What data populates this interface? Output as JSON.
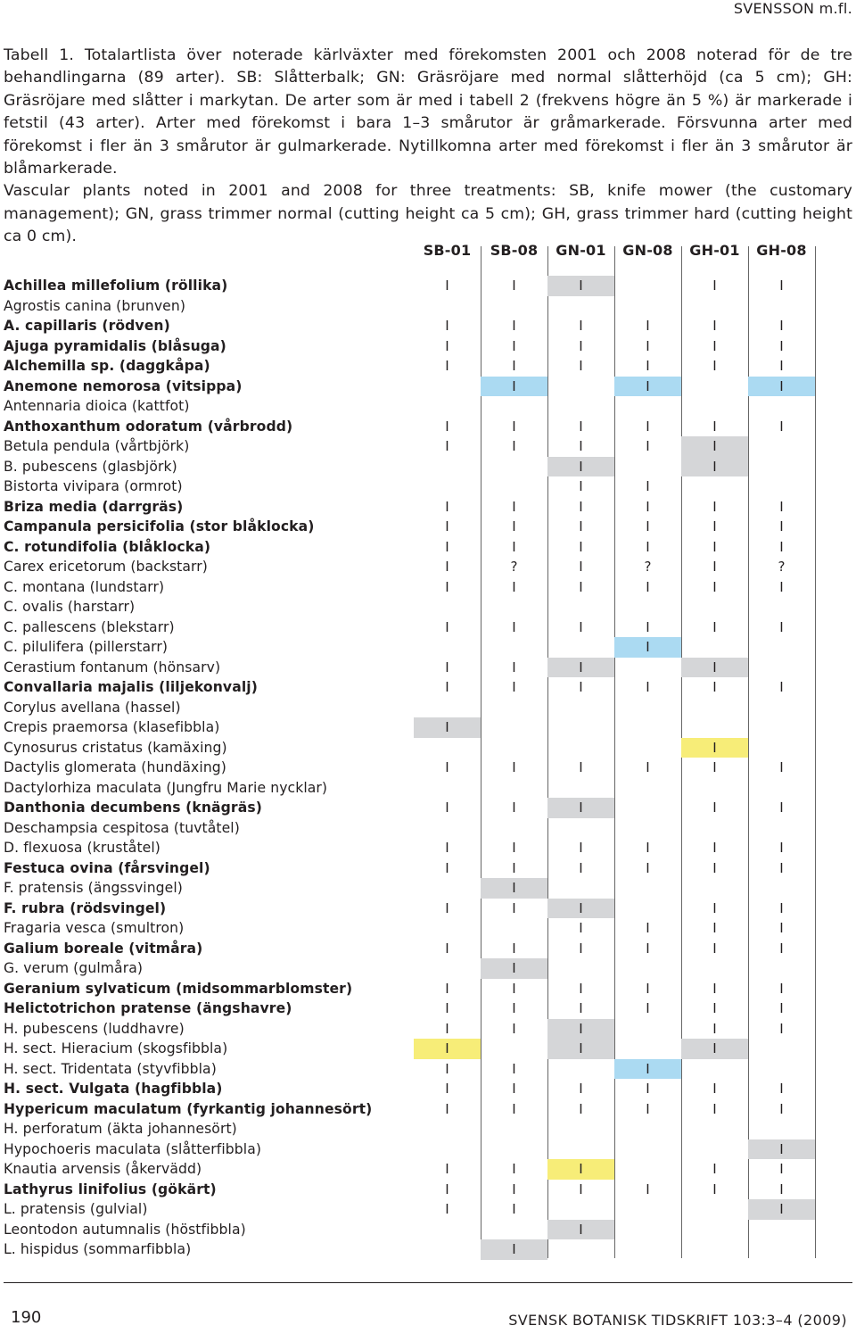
{
  "running_head": "SVENSSON m.fl.",
  "caption": {
    "swedish": "Tabell 1. Totalartlista över noterade kärlväxter med förekomsten 2001 och 2008 noterad för de tre behandlingarna (89 arter). SB: Slåtterbalk; GN: Gräsröjare med normal slåtterhöjd (ca 5 cm); GH: Gräsröjare med slåtter i markytan. De arter som är med i tabell 2 (frekvens högre än 5 %) är markerade i fetstil (43 arter). Arter med förekomst i bara 1–3 smårutor är gråmarkerade. Försvunna arter med förekomst i fler än 3 smårutor är gulmarkerade. Nytillkomna arter med förekomst i fler än 3 smårutor är blåmarkerade.",
    "english": "Vascular plants noted in 2001 and 2008 for three treatments: SB, knife mower (the customary management); GN, grass trimmer normal (cutting height ca 5 cm); GH, grass trimmer hard (cutting height ca 0 cm)."
  },
  "columns": [
    "SB-01",
    "SB-08",
    "GN-01",
    "GN-08",
    "GH-01",
    "GH-08"
  ],
  "highlight_colors": {
    "gray": "#d5d6d8",
    "blue": "#abdaf2",
    "yellow": "#f7ed78"
  },
  "rows": [
    {
      "species": "Achillea millefolium (röllika)",
      "bold": true,
      "cells": [
        {
          "v": "I"
        },
        {
          "v": "I"
        },
        {
          "v": "I",
          "h": "gray"
        },
        {
          "v": ""
        },
        {
          "v": "I"
        },
        {
          "v": "I"
        }
      ]
    },
    {
      "species": "Agrostis canina (brunven)",
      "bold": false,
      "cells": [
        {
          "v": ""
        },
        {
          "v": ""
        },
        {
          "v": ""
        },
        {
          "v": ""
        },
        {
          "v": ""
        },
        {
          "v": ""
        }
      ]
    },
    {
      "species": "A. capillaris (rödven)",
      "bold": true,
      "cells": [
        {
          "v": "I"
        },
        {
          "v": "I"
        },
        {
          "v": "I"
        },
        {
          "v": "I"
        },
        {
          "v": "I"
        },
        {
          "v": "I"
        }
      ]
    },
    {
      "species": "Ajuga pyramidalis (blåsuga)",
      "bold": true,
      "cells": [
        {
          "v": "I"
        },
        {
          "v": "I"
        },
        {
          "v": "I"
        },
        {
          "v": "I"
        },
        {
          "v": "I"
        },
        {
          "v": "I"
        }
      ]
    },
    {
      "species": "Alchemilla sp. (daggkåpa)",
      "bold": true,
      "cells": [
        {
          "v": "I"
        },
        {
          "v": "I"
        },
        {
          "v": "I"
        },
        {
          "v": "I"
        },
        {
          "v": "I"
        },
        {
          "v": "I"
        }
      ]
    },
    {
      "species": "Anemone nemorosa (vitsippa)",
      "bold": true,
      "cells": [
        {
          "v": ""
        },
        {
          "v": "I",
          "h": "blue"
        },
        {
          "v": ""
        },
        {
          "v": "I",
          "h": "blue"
        },
        {
          "v": ""
        },
        {
          "v": "I",
          "h": "blue"
        }
      ]
    },
    {
      "species": "Antennaria dioica (kattfot)",
      "bold": false,
      "cells": [
        {
          "v": ""
        },
        {
          "v": ""
        },
        {
          "v": ""
        },
        {
          "v": ""
        },
        {
          "v": ""
        },
        {
          "v": ""
        }
      ]
    },
    {
      "species": "Anthoxanthum odoratum (vårbrodd)",
      "bold": true,
      "cells": [
        {
          "v": "I"
        },
        {
          "v": "I"
        },
        {
          "v": "I"
        },
        {
          "v": "I"
        },
        {
          "v": "I"
        },
        {
          "v": "I"
        }
      ]
    },
    {
      "species": "Betula pendula (vårtbjörk)",
      "bold": false,
      "cells": [
        {
          "v": "I"
        },
        {
          "v": "I"
        },
        {
          "v": "I"
        },
        {
          "v": "I"
        },
        {
          "v": "I",
          "h": "gray"
        },
        {
          "v": ""
        }
      ]
    },
    {
      "species": "B. pubescens (glasbjörk)",
      "bold": false,
      "cells": [
        {
          "v": ""
        },
        {
          "v": ""
        },
        {
          "v": "I",
          "h": "gray"
        },
        {
          "v": ""
        },
        {
          "v": "I",
          "h": "gray"
        },
        {
          "v": ""
        }
      ]
    },
    {
      "species": "Bistorta vivipara (ormrot)",
      "bold": false,
      "cells": [
        {
          "v": ""
        },
        {
          "v": ""
        },
        {
          "v": "I"
        },
        {
          "v": "I"
        },
        {
          "v": ""
        },
        {
          "v": ""
        }
      ]
    },
    {
      "species": "Briza media (darrgräs)",
      "bold": true,
      "cells": [
        {
          "v": "I"
        },
        {
          "v": "I"
        },
        {
          "v": "I"
        },
        {
          "v": "I"
        },
        {
          "v": "I"
        },
        {
          "v": "I"
        }
      ]
    },
    {
      "species": "Campanula persicifolia (stor blåklocka)",
      "bold": true,
      "cells": [
        {
          "v": "I"
        },
        {
          "v": "I"
        },
        {
          "v": "I"
        },
        {
          "v": "I"
        },
        {
          "v": "I"
        },
        {
          "v": "I"
        }
      ]
    },
    {
      "species": "C. rotundifolia (blåklocka)",
      "bold": true,
      "cells": [
        {
          "v": "I"
        },
        {
          "v": "I"
        },
        {
          "v": "I"
        },
        {
          "v": "I"
        },
        {
          "v": "I"
        },
        {
          "v": "I"
        }
      ]
    },
    {
      "species": "Carex ericetorum (backstarr)",
      "bold": false,
      "cells": [
        {
          "v": "I"
        },
        {
          "v": "?"
        },
        {
          "v": "I"
        },
        {
          "v": "?"
        },
        {
          "v": "I"
        },
        {
          "v": "?"
        }
      ]
    },
    {
      "species": "C. montana (lundstarr)",
      "bold": false,
      "cells": [
        {
          "v": "I"
        },
        {
          "v": "I"
        },
        {
          "v": "I"
        },
        {
          "v": "I"
        },
        {
          "v": "I"
        },
        {
          "v": "I"
        }
      ]
    },
    {
      "species": "C. ovalis (harstarr)",
      "bold": false,
      "cells": [
        {
          "v": ""
        },
        {
          "v": ""
        },
        {
          "v": ""
        },
        {
          "v": ""
        },
        {
          "v": ""
        },
        {
          "v": ""
        }
      ]
    },
    {
      "species": "C. pallescens (blekstarr)",
      "bold": false,
      "cells": [
        {
          "v": "I"
        },
        {
          "v": "I"
        },
        {
          "v": "I"
        },
        {
          "v": "I"
        },
        {
          "v": "I"
        },
        {
          "v": "I"
        }
      ]
    },
    {
      "species": "C. pilulifera (pillerstarr)",
      "bold": false,
      "cells": [
        {
          "v": ""
        },
        {
          "v": ""
        },
        {
          "v": ""
        },
        {
          "v": "I",
          "h": "blue"
        },
        {
          "v": ""
        },
        {
          "v": ""
        }
      ]
    },
    {
      "species": "Cerastium fontanum (hönsarv)",
      "bold": false,
      "cells": [
        {
          "v": "I"
        },
        {
          "v": "I"
        },
        {
          "v": "I",
          "h": "gray"
        },
        {
          "v": ""
        },
        {
          "v": "I",
          "h": "gray"
        },
        {
          "v": ""
        }
      ]
    },
    {
      "species": "Convallaria majalis (liljekonvalj)",
      "bold": true,
      "cells": [
        {
          "v": "I"
        },
        {
          "v": "I"
        },
        {
          "v": "I"
        },
        {
          "v": "I"
        },
        {
          "v": "I"
        },
        {
          "v": "I"
        }
      ]
    },
    {
      "species": "Corylus avellana (hassel)",
      "bold": false,
      "cells": [
        {
          "v": ""
        },
        {
          "v": ""
        },
        {
          "v": ""
        },
        {
          "v": ""
        },
        {
          "v": ""
        },
        {
          "v": ""
        }
      ]
    },
    {
      "species": "Crepis praemorsa (klasefibbla)",
      "bold": false,
      "cells": [
        {
          "v": "I",
          "h": "gray"
        },
        {
          "v": ""
        },
        {
          "v": ""
        },
        {
          "v": ""
        },
        {
          "v": ""
        },
        {
          "v": ""
        }
      ]
    },
    {
      "species": "Cynosurus cristatus (kamäxing)",
      "bold": false,
      "cells": [
        {
          "v": ""
        },
        {
          "v": ""
        },
        {
          "v": ""
        },
        {
          "v": ""
        },
        {
          "v": "I",
          "h": "yellow"
        },
        {
          "v": ""
        }
      ]
    },
    {
      "species": "Dactylis glomerata (hundäxing)",
      "bold": false,
      "cells": [
        {
          "v": "I"
        },
        {
          "v": "I"
        },
        {
          "v": "I"
        },
        {
          "v": "I"
        },
        {
          "v": "I"
        },
        {
          "v": "I"
        }
      ]
    },
    {
      "species": "Dactylorhiza maculata (Jungfru Marie nycklar)",
      "bold": false,
      "cells": [
        {
          "v": ""
        },
        {
          "v": ""
        },
        {
          "v": ""
        },
        {
          "v": ""
        },
        {
          "v": ""
        },
        {
          "v": ""
        }
      ]
    },
    {
      "species": "Danthonia decumbens (knägräs)",
      "bold": true,
      "cells": [
        {
          "v": "I"
        },
        {
          "v": "I"
        },
        {
          "v": "I",
          "h": "gray"
        },
        {
          "v": ""
        },
        {
          "v": "I"
        },
        {
          "v": "I"
        }
      ]
    },
    {
      "species": "Deschampsia cespitosa (tuvtåtel)",
      "bold": false,
      "cells": [
        {
          "v": ""
        },
        {
          "v": ""
        },
        {
          "v": ""
        },
        {
          "v": ""
        },
        {
          "v": ""
        },
        {
          "v": ""
        }
      ]
    },
    {
      "species": "D. flexuosa (kruståtel)",
      "bold": false,
      "cells": [
        {
          "v": "I"
        },
        {
          "v": "I"
        },
        {
          "v": "I"
        },
        {
          "v": "I"
        },
        {
          "v": "I"
        },
        {
          "v": "I"
        }
      ]
    },
    {
      "species": "Festuca ovina (fårsvingel)",
      "bold": true,
      "cells": [
        {
          "v": "I"
        },
        {
          "v": "I"
        },
        {
          "v": "I"
        },
        {
          "v": "I"
        },
        {
          "v": "I"
        },
        {
          "v": "I"
        }
      ]
    },
    {
      "species": "F. pratensis (ängssvingel)",
      "bold": false,
      "cells": [
        {
          "v": ""
        },
        {
          "v": "I",
          "h": "gray"
        },
        {
          "v": ""
        },
        {
          "v": ""
        },
        {
          "v": ""
        },
        {
          "v": ""
        }
      ]
    },
    {
      "species": "F. rubra (rödsvingel)",
      "bold": true,
      "cells": [
        {
          "v": "I"
        },
        {
          "v": "I"
        },
        {
          "v": "I",
          "h": "gray"
        },
        {
          "v": ""
        },
        {
          "v": "I"
        },
        {
          "v": "I"
        }
      ]
    },
    {
      "species": "Fragaria vesca (smultron)",
      "bold": false,
      "cells": [
        {
          "v": ""
        },
        {
          "v": ""
        },
        {
          "v": "I"
        },
        {
          "v": "I"
        },
        {
          "v": "I"
        },
        {
          "v": "I"
        }
      ]
    },
    {
      "species": "Galium boreale (vitmåra)",
      "bold": true,
      "cells": [
        {
          "v": "I"
        },
        {
          "v": "I"
        },
        {
          "v": "I"
        },
        {
          "v": "I"
        },
        {
          "v": "I"
        },
        {
          "v": "I"
        }
      ]
    },
    {
      "species": "G. verum (gulmåra)",
      "bold": false,
      "cells": [
        {
          "v": ""
        },
        {
          "v": "I",
          "h": "gray"
        },
        {
          "v": ""
        },
        {
          "v": ""
        },
        {
          "v": ""
        },
        {
          "v": ""
        }
      ]
    },
    {
      "species": "Geranium sylvaticum (midsommarblomster)",
      "bold": true,
      "cells": [
        {
          "v": "I"
        },
        {
          "v": "I"
        },
        {
          "v": "I"
        },
        {
          "v": "I"
        },
        {
          "v": "I"
        },
        {
          "v": "I"
        }
      ]
    },
    {
      "species": "Helictotrichon pratense (ängshavre)",
      "bold": true,
      "cells": [
        {
          "v": "I"
        },
        {
          "v": "I"
        },
        {
          "v": "I"
        },
        {
          "v": "I"
        },
        {
          "v": "I"
        },
        {
          "v": "I"
        }
      ]
    },
    {
      "species": "H. pubescens (luddhavre)",
      "bold": false,
      "cells": [
        {
          "v": "I"
        },
        {
          "v": "I"
        },
        {
          "v": "I",
          "h": "gray"
        },
        {
          "v": ""
        },
        {
          "v": "I"
        },
        {
          "v": "I"
        }
      ]
    },
    {
      "species": "H. sect. Hieracium (skogsfibbla)",
      "bold": false,
      "cells": [
        {
          "v": "I",
          "h": "yellow"
        },
        {
          "v": ""
        },
        {
          "v": "I",
          "h": "gray"
        },
        {
          "v": ""
        },
        {
          "v": "I",
          "h": "gray"
        },
        {
          "v": ""
        }
      ]
    },
    {
      "species": "H. sect. Tridentata (styvfibbla)",
      "bold": false,
      "cells": [
        {
          "v": "I"
        },
        {
          "v": "I"
        },
        {
          "v": ""
        },
        {
          "v": "I",
          "h": "blue"
        },
        {
          "v": ""
        },
        {
          "v": ""
        }
      ]
    },
    {
      "species": "H. sect. Vulgata (hagfibbla)",
      "bold": true,
      "cells": [
        {
          "v": "I"
        },
        {
          "v": "I"
        },
        {
          "v": "I"
        },
        {
          "v": "I"
        },
        {
          "v": "I"
        },
        {
          "v": "I"
        }
      ]
    },
    {
      "species": "Hypericum maculatum (fyrkantig johannesört)",
      "bold": true,
      "cells": [
        {
          "v": "I"
        },
        {
          "v": "I"
        },
        {
          "v": "I"
        },
        {
          "v": "I"
        },
        {
          "v": "I"
        },
        {
          "v": "I"
        }
      ]
    },
    {
      "species": "H. perforatum (äkta johannesört)",
      "bold": false,
      "cells": [
        {
          "v": ""
        },
        {
          "v": ""
        },
        {
          "v": ""
        },
        {
          "v": ""
        },
        {
          "v": ""
        },
        {
          "v": ""
        }
      ]
    },
    {
      "species": "Hypochoeris maculata (slåtterfibbla)",
      "bold": false,
      "cells": [
        {
          "v": ""
        },
        {
          "v": ""
        },
        {
          "v": ""
        },
        {
          "v": ""
        },
        {
          "v": ""
        },
        {
          "v": "I",
          "h": "gray"
        }
      ]
    },
    {
      "species": "Knautia arvensis (åkervädd)",
      "bold": false,
      "cells": [
        {
          "v": "I"
        },
        {
          "v": "I"
        },
        {
          "v": "I",
          "h": "yellow"
        },
        {
          "v": ""
        },
        {
          "v": "I"
        },
        {
          "v": "I"
        }
      ]
    },
    {
      "species": "Lathyrus linifolius (gökärt)",
      "bold": true,
      "cells": [
        {
          "v": "I"
        },
        {
          "v": "I"
        },
        {
          "v": "I"
        },
        {
          "v": "I"
        },
        {
          "v": "I"
        },
        {
          "v": "I"
        }
      ]
    },
    {
      "species": "L. pratensis (gulvial)",
      "bold": false,
      "cells": [
        {
          "v": "I"
        },
        {
          "v": "I"
        },
        {
          "v": ""
        },
        {
          "v": ""
        },
        {
          "v": ""
        },
        {
          "v": "I",
          "h": "gray"
        }
      ]
    },
    {
      "species": "Leontodon autumnalis (höstfibbla)",
      "bold": false,
      "cells": [
        {
          "v": ""
        },
        {
          "v": ""
        },
        {
          "v": "I",
          "h": "gray"
        },
        {
          "v": ""
        },
        {
          "v": ""
        },
        {
          "v": ""
        }
      ]
    },
    {
      "species": "L. hispidus (sommarfibbla)",
      "bold": false,
      "cells": [
        {
          "v": ""
        },
        {
          "v": "I",
          "h": "gray"
        },
        {
          "v": ""
        },
        {
          "v": ""
        },
        {
          "v": ""
        },
        {
          "v": ""
        }
      ]
    }
  ],
  "footer": {
    "page_number": "190",
    "journal": "SVENSK BOTANISK TIDSKRIFT 103:3–4 (2009)"
  }
}
